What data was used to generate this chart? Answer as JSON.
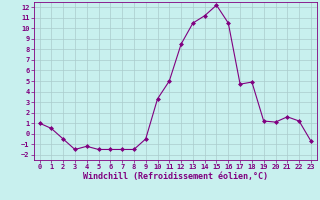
{
  "x": [
    0,
    1,
    2,
    3,
    4,
    5,
    6,
    7,
    8,
    9,
    10,
    11,
    12,
    13,
    14,
    15,
    16,
    17,
    18,
    19,
    20,
    21,
    22,
    23
  ],
  "y": [
    1,
    0.5,
    -0.5,
    -1.5,
    -1.2,
    -1.5,
    -1.5,
    -1.5,
    -1.5,
    -0.5,
    3.3,
    5.0,
    8.5,
    10.5,
    11.2,
    12.2,
    10.5,
    4.7,
    4.9,
    1.2,
    1.1,
    1.6,
    1.2,
    -0.7
  ],
  "line_color": "#800080",
  "marker": "D",
  "marker_size": 2,
  "bg_color": "#c8f0ee",
  "grid_color": "#aacccc",
  "xlabel": "Windchill (Refroidissement éolien,°C)",
  "xlim": [
    -0.5,
    23.5
  ],
  "ylim": [
    -2.5,
    12.5
  ],
  "yticks": [
    -2,
    -1,
    0,
    1,
    2,
    3,
    4,
    5,
    6,
    7,
    8,
    9,
    10,
    11,
    12
  ],
  "xticks": [
    0,
    1,
    2,
    3,
    4,
    5,
    6,
    7,
    8,
    9,
    10,
    11,
    12,
    13,
    14,
    15,
    16,
    17,
    18,
    19,
    20,
    21,
    22,
    23
  ],
  "tick_color": "#800080",
  "tick_fontsize": 5,
  "xlabel_fontsize": 6
}
